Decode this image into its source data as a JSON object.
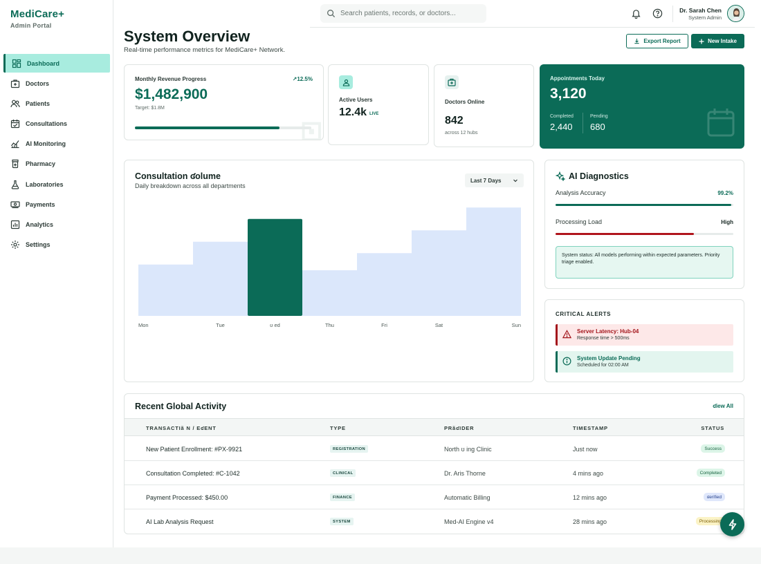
{
  "brand": {
    "title": "MediCare+",
    "subtitle": "Admin Portal"
  },
  "sidebar": {
    "items": [
      {
        "label": "Dashboard",
        "icon": "dashboard-icon",
        "active": true
      },
      {
        "label": "Doctors",
        "icon": "medical-bag-icon"
      },
      {
        "label": "Patients",
        "icon": "users-icon"
      },
      {
        "label": "Consultations",
        "icon": "calendar-check-icon"
      },
      {
        "label": "AI Monitoring",
        "icon": "chart-line-icon"
      },
      {
        "label": "Pharmacy",
        "icon": "pill-bottle-icon"
      },
      {
        "label": "Laboratories",
        "icon": "flask-icon"
      },
      {
        "label": "Payments",
        "icon": "cash-icon"
      },
      {
        "label": "Analytics",
        "icon": "bar-chart-icon"
      },
      {
        "label": "Settings",
        "icon": "gear-icon"
      }
    ]
  },
  "header": {
    "search_placeholder": "Search patients, records, or doctors...",
    "user_name": "Dr. Sarah Chen",
    "user_role": "System Admin"
  },
  "page": {
    "title": "System Overview",
    "subtitle": "Real-time performance metrics for MediCare+ Network.",
    "export_label": "Export Report",
    "intake_label": "New Intake"
  },
  "revenue": {
    "label": "Monthly Revenue Progress",
    "trend": "12.5%",
    "value": "$1,482,900",
    "target": "Target: $1.8M",
    "progress": 0.82
  },
  "active_users": {
    "label": "Active Users",
    "value": "12.4k",
    "badge": "LIVE"
  },
  "doctors_online": {
    "label": "Doctors Online",
    "value": "842",
    "sub": "across 12 hubs"
  },
  "appointments": {
    "label": "Appointments Today",
    "value": "3,120",
    "completed_label": "Completed",
    "completed_value": "2,440",
    "pending_label": "Pending",
    "pending_value": "680"
  },
  "volume": {
    "title": "Consultation ʛolume",
    "subtitle": "Daily breakdown across all departments",
    "range_label": "Last 7 Days"
  },
  "chart_data": {
    "type": "bar",
    "categories": [
      "Mon",
      "Tue",
      "ʊ ed",
      "Thu",
      "Fri",
      "Sat",
      "Sun"
    ],
    "values": [
      45,
      65,
      85,
      40,
      55,
      75,
      95
    ],
    "highlight_index": 2,
    "ylim": [
      0,
      100
    ],
    "colors": {
      "bar": "#dbe7fb",
      "highlight": "#0b6b57"
    }
  },
  "ai": {
    "title": "AI Diagnostics",
    "accuracy_label": "Analysis Accuracy",
    "accuracy_value": "99.2%",
    "accuracy_fraction": 0.99,
    "load_label": "Processing Load",
    "load_value": "High",
    "load_fraction": 0.78,
    "status_text": "System status: All models performing within expected parameters. Priority triage enabled."
  },
  "alerts": {
    "title": "CRITICAL ALERTS",
    "items": [
      {
        "title": "Server Latency: Hub-04",
        "sub": "Response time > 500ms",
        "level": "critical"
      },
      {
        "title": "System Update Pending",
        "sub": "Scheduled for 02:00 AM",
        "level": "info"
      }
    ]
  },
  "activity": {
    "title": "Recent Global Activity",
    "view_all": "ʛiew All",
    "columns": [
      "TRANSACTIã N / EʛENT",
      "TYPE",
      "PRãʛIDER",
      "TIMESTAMP",
      "STATUS"
    ],
    "rows": [
      {
        "event": "New Patient Enrollment: #PX-9921",
        "type": "REGISTRATION",
        "provider": "North ʊ ing Clinic",
        "time": "Just now",
        "status": "Success",
        "status_bg": "#dcf5e8",
        "status_fg": "#17623f"
      },
      {
        "event": "Consultation Completed: #C-1042",
        "type": "CLINICAL",
        "provider": "Dr. Aris Thorne",
        "time": "4 mins ago",
        "status": "Completed",
        "status_bg": "#dcf5e8",
        "status_fg": "#17623f"
      },
      {
        "event": "Payment Processed: $450.00",
        "type": "FINANCE",
        "provider": "Automatic Billing",
        "time": "12 mins ago",
        "status": "ʛerified",
        "status_bg": "#dfe7fb",
        "status_fg": "#27438f"
      },
      {
        "event": "AI Lab Analysis Request",
        "type": "SYSTEM",
        "provider": "Med-AI Engine v4",
        "time": "28 mins ago",
        "status": "Processing",
        "status_bg": "#fbf3c6",
        "status_fg": "#7a5a00"
      }
    ]
  }
}
